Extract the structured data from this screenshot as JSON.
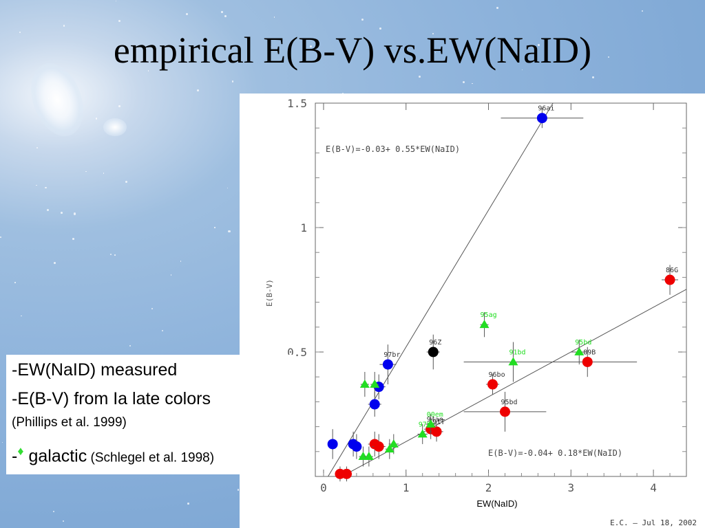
{
  "slide": {
    "title": "empirical E(B-V) vs.EW(NaID)",
    "footer": "E.C.  –  Jul 18, 2002"
  },
  "notes": {
    "line1": "-EW(NaID) measured",
    "line2": "-E(B-V) from Ia late colors",
    "line3": "(Phillips et al. 1999)",
    "line4_prefix": "-",
    "line4_symbol": "♦",
    "line4_main": " galactic",
    "line4_citation": " (Schlegel et al. 1998)"
  },
  "chart_data": {
    "type": "scatter",
    "xlabel": "EW(NaID)",
    "ylabel": "E(B-V)",
    "xlim": [
      -0.1,
      4.4
    ],
    "ylim": [
      0.0,
      1.5
    ],
    "x_ticks": [
      0,
      1,
      2,
      3,
      4
    ],
    "x_tick_labels": [
      "0",
      "1",
      "2",
      "3",
      "4"
    ],
    "y_ticks": [
      0.5,
      1.0,
      1.5
    ],
    "y_tick_labels": [
      "0.5",
      "1",
      "1.5"
    ],
    "colors": {
      "blue": "#0000ee",
      "red": "#ee0000",
      "green": "#22dd22",
      "black": "#000000",
      "fit": "#555555"
    },
    "fits": [
      {
        "label": "E(B-V)=-0.03+ 0.55*EW(NaID)",
        "intercept": -0.03,
        "slope": 0.55
      },
      {
        "label": "E(B-V)=-0.04+ 0.18*EW(NaID)",
        "intercept": -0.04,
        "slope": 0.18
      }
    ],
    "series": [
      {
        "marker": "circle",
        "color": "blue",
        "points": [
          {
            "x": 2.65,
            "y": 1.44,
            "xerr": 0.5,
            "yerr": 0.04,
            "label": "96ai"
          },
          {
            "x": 0.78,
            "y": 0.45,
            "xerr": 0.1,
            "yerr": 0.08,
            "label": "97br"
          },
          {
            "x": 0.67,
            "y": 0.36,
            "xerr": 0.08,
            "yerr": 0.05
          },
          {
            "x": 0.62,
            "y": 0.29,
            "xerr": 0.08,
            "yerr": 0.05
          },
          {
            "x": 0.11,
            "y": 0.13,
            "xerr": 0.06,
            "yerr": 0.06
          },
          {
            "x": 0.36,
            "y": 0.13,
            "xerr": 0.05,
            "yerr": 0.05
          },
          {
            "x": 0.4,
            "y": 0.12,
            "xerr": 0.05,
            "yerr": 0.05
          }
        ]
      },
      {
        "marker": "circle",
        "color": "red",
        "points": [
          {
            "x": 4.2,
            "y": 0.79,
            "xerr": 0.1,
            "yerr": 0.06,
            "label": "86G"
          },
          {
            "x": 3.2,
            "y": 0.46,
            "xerr": 0.6,
            "yerr": 0.06,
            "label": "89B"
          },
          {
            "x": 2.05,
            "y": 0.37,
            "xerr": 0.08,
            "yerr": 0.04,
            "label": "96bo"
          },
          {
            "x": 2.2,
            "y": 0.26,
            "xerr": 0.5,
            "yerr": 0.08,
            "label": "95bd"
          },
          {
            "x": 1.3,
            "y": 0.19,
            "xerr": 0.08,
            "yerr": 0.04,
            "label": "94ae"
          },
          {
            "x": 1.37,
            "y": 0.18,
            "xerr": 0.08,
            "yerr": 0.04,
            "label": "91T"
          },
          {
            "x": 0.62,
            "y": 0.13,
            "xerr": 0.08,
            "yerr": 0.05
          },
          {
            "x": 0.67,
            "y": 0.12,
            "xerr": 0.08,
            "yerr": 0.05
          },
          {
            "x": 0.2,
            "y": 0.01,
            "xerr": 0.05,
            "yerr": 0.03
          },
          {
            "x": 0.28,
            "y": 0.01,
            "xerr": 0.05,
            "yerr": 0.03
          }
        ]
      },
      {
        "marker": "circle",
        "color": "black",
        "points": [
          {
            "x": 1.33,
            "y": 0.5,
            "xerr": 0.08,
            "yerr": 0.07,
            "label": "96Z"
          }
        ]
      },
      {
        "marker": "triangle",
        "color": "green",
        "points": [
          {
            "x": 1.95,
            "y": 0.61,
            "xerr": 0.05,
            "yerr": 0.05,
            "label": "95ag"
          },
          {
            "x": 3.1,
            "y": 0.5,
            "xerr": 0.1,
            "yerr": 0.05,
            "label": "95bd"
          },
          {
            "x": 2.3,
            "y": 0.46,
            "xerr": 0.6,
            "yerr": 0.08,
            "label": "91bd"
          },
          {
            "x": 0.5,
            "y": 0.37,
            "xerr": 0.05,
            "yerr": 0.05
          },
          {
            "x": 0.62,
            "y": 0.37,
            "xerr": 0.05,
            "yerr": 0.05
          },
          {
            "x": 1.2,
            "y": 0.17,
            "xerr": 0.06,
            "yerr": 0.04,
            "label": "97br"
          },
          {
            "x": 1.3,
            "y": 0.21,
            "xerr": 0.06,
            "yerr": 0.04,
            "label": "00em"
          },
          {
            "x": 0.85,
            "y": 0.13,
            "xerr": 0.06,
            "yerr": 0.04
          },
          {
            "x": 0.8,
            "y": 0.11,
            "xerr": 0.05,
            "yerr": 0.04
          },
          {
            "x": 0.48,
            "y": 0.08,
            "xerr": 0.05,
            "yerr": 0.04
          },
          {
            "x": 0.55,
            "y": 0.08,
            "xerr": 0.05,
            "yerr": 0.04
          }
        ]
      }
    ]
  }
}
